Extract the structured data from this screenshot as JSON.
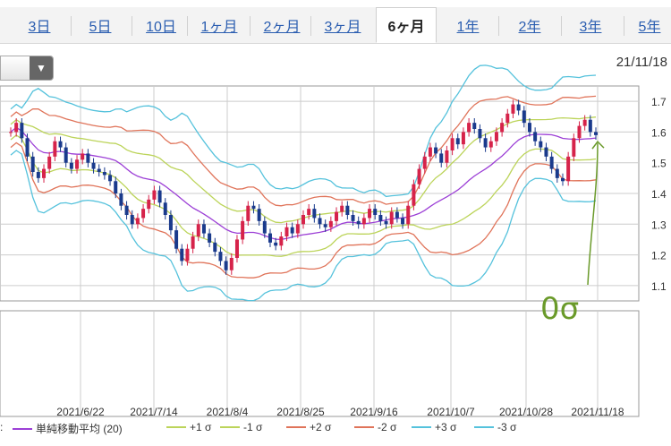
{
  "tabs": [
    {
      "label": "3日",
      "active": false
    },
    {
      "label": "5日",
      "active": false
    },
    {
      "label": "10日",
      "active": false
    },
    {
      "label": "1ヶ月",
      "active": false
    },
    {
      "label": "2ヶ月",
      "active": false
    },
    {
      "label": "3ヶ月",
      "active": false
    },
    {
      "label": "6ヶ月",
      "active": true
    },
    {
      "label": "1年",
      "active": false
    },
    {
      "label": "2年",
      "active": false
    },
    {
      "label": "3年",
      "active": false
    },
    {
      "label": "5年",
      "active": false
    }
  ],
  "dropdown": {
    "icon": "chevron-down-icon",
    "glyph": "▼"
  },
  "date_label": "21/11/18",
  "legend": {
    "lead": ":",
    "items": [
      {
        "label": "単純移動平均 (20)",
        "color": "#9c3fd6"
      },
      {
        "label": "+1 σ",
        "color": "#bcd45a"
      },
      {
        "label": "-1 σ",
        "color": "#bcd45a"
      },
      {
        "label": "+2 σ",
        "color": "#e0745a"
      },
      {
        "label": "-2 σ",
        "color": "#e0745a"
      },
      {
        "label": "+3 σ",
        "color": "#55c2dc"
      },
      {
        "label": "-3 σ",
        "color": "#55c2dc"
      }
    ]
  },
  "annotation": {
    "text": "0σ",
    "color": "#6a9a2a"
  },
  "chart_data": {
    "type": "candlestick",
    "ylim": [
      1.05,
      1.75
    ],
    "y_ticks": [
      "1.7",
      "1.6",
      "1.5",
      "1.4",
      "1.3",
      "1.2",
      "1.1"
    ],
    "y_tick_values": [
      1.7,
      1.6,
      1.5,
      1.4,
      1.3,
      1.2,
      1.1
    ],
    "x_ticks": [
      "2021/6/22",
      "2021/7/14",
      "2021/8/4",
      "2021/8/25",
      "2021/9/16",
      "2021/10/7",
      "2021/10/28",
      "2021/11/18"
    ],
    "colors": {
      "up": "#d6234a",
      "down": "#1a3a8c",
      "grid": "#cccccc"
    },
    "close": [
      1.6,
      1.63,
      1.58,
      1.52,
      1.47,
      1.45,
      1.48,
      1.52,
      1.57,
      1.55,
      1.5,
      1.48,
      1.51,
      1.53,
      1.5,
      1.48,
      1.47,
      1.46,
      1.44,
      1.4,
      1.36,
      1.33,
      1.3,
      1.32,
      1.35,
      1.38,
      1.41,
      1.37,
      1.33,
      1.28,
      1.22,
      1.18,
      1.22,
      1.26,
      1.3,
      1.27,
      1.24,
      1.21,
      1.18,
      1.15,
      1.19,
      1.25,
      1.31,
      1.36,
      1.35,
      1.31,
      1.27,
      1.24,
      1.23,
      1.26,
      1.29,
      1.27,
      1.3,
      1.33,
      1.35,
      1.32,
      1.3,
      1.29,
      1.31,
      1.34,
      1.36,
      1.33,
      1.31,
      1.3,
      1.32,
      1.35,
      1.33,
      1.31,
      1.3,
      1.34,
      1.32,
      1.3,
      1.36,
      1.43,
      1.48,
      1.52,
      1.55,
      1.53,
      1.5,
      1.54,
      1.58,
      1.56,
      1.6,
      1.63,
      1.61,
      1.58,
      1.55,
      1.57,
      1.6,
      1.63,
      1.66,
      1.69,
      1.67,
      1.63,
      1.6,
      1.57,
      1.55,
      1.52,
      1.48,
      1.45,
      1.44,
      1.52,
      1.58,
      1.62,
      1.64,
      1.6,
      1.59
    ]
  }
}
